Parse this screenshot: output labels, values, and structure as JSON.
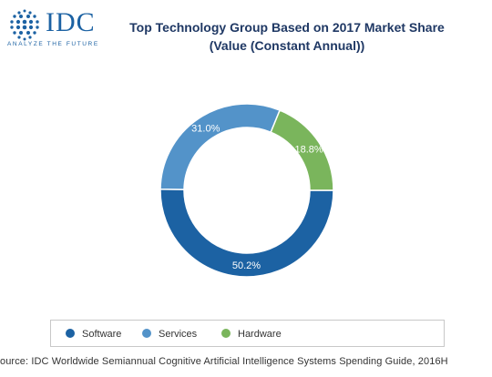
{
  "logo": {
    "wordmark": "IDC",
    "tagline": "ANALYZE THE FUTURE"
  },
  "title_line1": "Top Technology Group Based on 2017 Market Share",
  "title_line2": "(Value (Constant Annual))",
  "legend": [
    {
      "label": "Software",
      "color": "#1c62a3"
    },
    {
      "label": "Services",
      "color": "#5393c9"
    },
    {
      "label": "Hardware",
      "color": "#7ab55c"
    }
  ],
  "source": "ource: IDC Worldwide Semiannual Cognitive Artificial Intelligence Systems Spending Guide, 2016H",
  "chart_data": {
    "type": "pie",
    "donut": true,
    "series": [
      {
        "name": "Software",
        "value": 50.2,
        "label": "50.2%",
        "color": "#1c62a3"
      },
      {
        "name": "Services",
        "value": 31.0,
        "label": "31.0%",
        "color": "#5393c9"
      },
      {
        "name": "Hardware",
        "value": 18.8,
        "label": "18.8%",
        "color": "#7ab55c"
      }
    ],
    "legend_position": "bottom"
  }
}
